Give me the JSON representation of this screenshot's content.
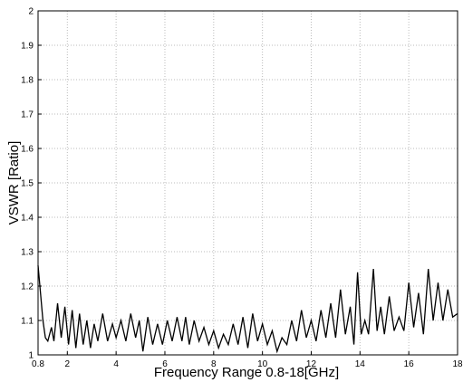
{
  "chart_data": {
    "type": "line",
    "y_label": "VSWR [Ratio]",
    "x_label": "Frequency Range 0.8-18[GHz]",
    "xlim": [
      0.8,
      18
    ],
    "xticks": [
      0.8,
      2,
      4,
      6,
      8,
      10,
      12,
      14,
      16,
      18
    ],
    "ylim": [
      1,
      2
    ],
    "yticks": [
      1,
      1.1,
      1.2,
      1.3,
      1.4,
      1.5,
      1.6,
      1.7,
      1.8,
      1.9,
      2
    ],
    "grid": true,
    "x": [
      0.8,
      0.9,
      1.0,
      1.1,
      1.2,
      1.35,
      1.45,
      1.6,
      1.75,
      1.9,
      2.05,
      2.2,
      2.35,
      2.5,
      2.65,
      2.8,
      2.95,
      3.1,
      3.25,
      3.45,
      3.65,
      3.85,
      4.0,
      4.2,
      4.4,
      4.6,
      4.8,
      4.95,
      5.1,
      5.3,
      5.5,
      5.7,
      5.9,
      6.1,
      6.3,
      6.5,
      6.7,
      6.85,
      7.0,
      7.2,
      7.4,
      7.6,
      7.8,
      8.0,
      8.2,
      8.4,
      8.6,
      8.8,
      9.0,
      9.2,
      9.4,
      9.6,
      9.8,
      10.0,
      10.2,
      10.4,
      10.6,
      10.8,
      11.0,
      11.2,
      11.4,
      11.6,
      11.8,
      12.0,
      12.2,
      12.4,
      12.6,
      12.8,
      13.0,
      13.2,
      13.4,
      13.6,
      13.75,
      13.9,
      14.05,
      14.2,
      14.35,
      14.55,
      14.7,
      14.85,
      15.0,
      15.2,
      15.4,
      15.6,
      15.8,
      16.0,
      16.2,
      16.4,
      16.6,
      16.8,
      17.0,
      17.2,
      17.4,
      17.6,
      17.8,
      18.0
    ],
    "series": [
      {
        "color": "#000000",
        "values": [
          1.26,
          1.18,
          1.1,
          1.05,
          1.04,
          1.08,
          1.04,
          1.15,
          1.05,
          1.14,
          1.03,
          1.13,
          1.02,
          1.12,
          1.03,
          1.1,
          1.02,
          1.09,
          1.04,
          1.12,
          1.04,
          1.09,
          1.05,
          1.1,
          1.04,
          1.12,
          1.05,
          1.1,
          1.01,
          1.11,
          1.03,
          1.09,
          1.03,
          1.1,
          1.04,
          1.11,
          1.04,
          1.11,
          1.03,
          1.1,
          1.04,
          1.08,
          1.03,
          1.07,
          1.02,
          1.06,
          1.03,
          1.09,
          1.03,
          1.11,
          1.02,
          1.12,
          1.04,
          1.09,
          1.03,
          1.07,
          1.01,
          1.05,
          1.03,
          1.1,
          1.04,
          1.13,
          1.05,
          1.1,
          1.04,
          1.13,
          1.05,
          1.15,
          1.05,
          1.19,
          1.06,
          1.14,
          1.03,
          1.24,
          1.06,
          1.1,
          1.06,
          1.25,
          1.07,
          1.14,
          1.06,
          1.17,
          1.07,
          1.11,
          1.07,
          1.21,
          1.08,
          1.18,
          1.06,
          1.25,
          1.1,
          1.21,
          1.1,
          1.19,
          1.11,
          1.12
        ]
      }
    ]
  }
}
